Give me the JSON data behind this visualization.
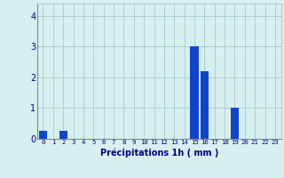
{
  "hours": [
    0,
    1,
    2,
    3,
    4,
    5,
    6,
    7,
    8,
    9,
    10,
    11,
    12,
    13,
    14,
    15,
    16,
    17,
    18,
    19,
    20,
    21,
    22,
    23
  ],
  "values": [
    0.25,
    0.0,
    0.25,
    0.0,
    0.0,
    0.0,
    0.0,
    0.0,
    0.0,
    0.0,
    0.0,
    0.0,
    0.0,
    0.0,
    0.0,
    3.0,
    2.2,
    0.0,
    0.0,
    1.0,
    0.0,
    0.0,
    0.0,
    0.0
  ],
  "bar_color": "#1144cc",
  "background_color": "#d6f0f0",
  "grid_color": "#aac8c8",
  "xlabel": "Précipitations 1h ( mm )",
  "xlabel_color": "#00008b",
  "tick_color": "#00008b",
  "ylim": [
    0,
    4.4
  ],
  "yticks": [
    0,
    1,
    2,
    3,
    4
  ],
  "bar_width": 0.8
}
